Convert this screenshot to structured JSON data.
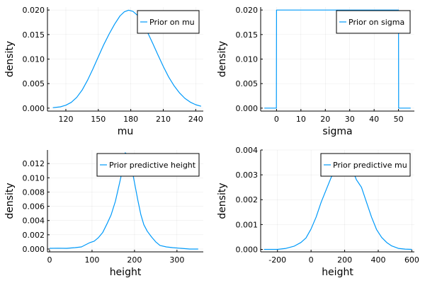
{
  "chart_data": [
    {
      "type": "line",
      "xlabel": "mu",
      "ylabel": "density",
      "xlim": [
        103,
        247
      ],
      "ylim": [
        -0.0006,
        0.0206
      ],
      "xticks": [
        120,
        150,
        180,
        210,
        240
      ],
      "yticks": [
        0.0,
        0.005,
        0.01,
        0.015,
        0.02
      ],
      "ytick_labels": [
        "0.000",
        "0.005",
        "0.010",
        "0.015",
        "0.020"
      ],
      "grid": true,
      "legend_position": "top-right",
      "series": [
        {
          "name": "Prior on mu",
          "color": "#009AFA",
          "x": [
            108,
            115,
            120,
            125,
            130,
            135,
            140,
            145,
            150,
            155,
            160,
            165,
            170,
            174,
            178,
            182,
            186,
            190,
            195,
            200,
            205,
            210,
            215,
            220,
            225,
            230,
            235,
            240,
            245
          ],
          "y": [
            9e-05,
            0.00027,
            0.0006,
            0.00118,
            0.00218,
            0.00367,
            0.00566,
            0.008,
            0.01048,
            0.01292,
            0.01512,
            0.0171,
            0.0188,
            0.01963,
            0.01996,
            0.01972,
            0.01895,
            0.0177,
            0.01567,
            0.01333,
            0.0109,
            0.0085,
            0.00635,
            0.00455,
            0.0031,
            0.002,
            0.00122,
            0.0007,
            0.00038
          ]
        }
      ]
    },
    {
      "type": "line",
      "xlabel": "sigma",
      "ylabel": "density",
      "xlim": [
        -6.5,
        56.5
      ],
      "ylim": [
        -0.0006,
        0.0206
      ],
      "xticks": [
        0,
        10,
        20,
        30,
        40,
        50
      ],
      "yticks": [
        0.0,
        0.005,
        0.01,
        0.015,
        0.02
      ],
      "ytick_labels": [
        "0.000",
        "0.005",
        "0.010",
        "0.015",
        "0.020"
      ],
      "grid": true,
      "legend_position": "top-right",
      "series": [
        {
          "name": "Prior on sigma",
          "color": "#009AFA",
          "x": [
            -5,
            -0.05,
            0,
            50,
            50.05,
            55
          ],
          "y": [
            0,
            0,
            0.02,
            0.02,
            0,
            0
          ]
        }
      ]
    },
    {
      "type": "line",
      "xlabel": "height",
      "ylabel": "density",
      "xlim": [
        -5,
        362
      ],
      "ylim": [
        -0.0004,
        0.0139
      ],
      "xticks": [
        0,
        100,
        200,
        300
      ],
      "yticks": [
        0.0,
        0.002,
        0.004,
        0.006,
        0.008,
        0.01,
        0.012
      ],
      "ytick_labels": [
        "0.000",
        "0.002",
        "0.004",
        "0.006",
        "0.008",
        "0.010",
        "0.012"
      ],
      "grid": true,
      "legend_position": "top-right",
      "series": [
        {
          "name": "Prior predictive height",
          "color": "#009AFA",
          "x": [
            0,
            20,
            40,
            60,
            75,
            85,
            95,
            105,
            115,
            125,
            135,
            145,
            155,
            165,
            172,
            178,
            183,
            188,
            194,
            200,
            208,
            215,
            222,
            230,
            240,
            250,
            260,
            275,
            290,
            310,
            330,
            350
          ],
          "y": [
            0.0001,
            0.00012,
            0.0001,
            0.0002,
            0.0003,
            0.0006,
            0.0009,
            0.0011,
            0.0016,
            0.0023,
            0.0035,
            0.0048,
            0.0067,
            0.0093,
            0.0112,
            0.0135,
            0.0133,
            0.0125,
            0.0112,
            0.0093,
            0.0068,
            0.0048,
            0.0034,
            0.0025,
            0.0017,
            0.001,
            0.0005,
            0.0003,
            0.0002,
            0.0001,
            0.0,
            0.0
          ]
        }
      ]
    },
    {
      "type": "line",
      "xlabel": "height",
      "ylabel": "density",
      "xlim": [
        -300,
        615
      ],
      "ylim": [
        -0.0001,
        0.004
      ],
      "xticks": [
        -200,
        0,
        200,
        400,
        600
      ],
      "yticks": [
        0.0,
        0.001,
        0.002,
        0.003,
        0.004
      ],
      "ytick_labels": [
        "0.000",
        "0.001",
        "0.002",
        "0.003",
        "0.004"
      ],
      "grid": true,
      "legend_position": "top-right",
      "series": [
        {
          "name": "Prior predictive mu",
          "color": "#009AFA",
          "x": [
            -280,
            -200,
            -150,
            -100,
            -60,
            -30,
            0,
            30,
            60,
            90,
            120,
            150,
            180,
            210,
            240,
            270,
            300,
            330,
            360,
            390,
            420,
            450,
            480,
            520,
            560,
            600
          ],
          "y": [
            0.0,
            0.0,
            4e-05,
            0.00013,
            0.00028,
            0.00046,
            0.00082,
            0.0013,
            0.0019,
            0.0024,
            0.0029,
            0.0032,
            0.0034,
            0.0035,
            0.0033,
            0.0028,
            0.0025,
            0.0019,
            0.0013,
            0.0008,
            0.00048,
            0.00028,
            0.00014,
            4e-05,
            1e-05,
            0.0
          ]
        }
      ]
    }
  ]
}
